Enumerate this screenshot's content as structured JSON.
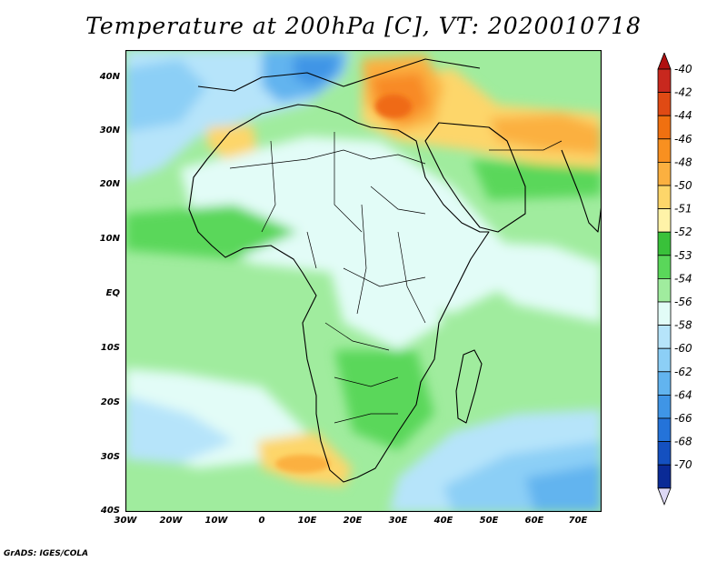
{
  "title": "Temperature at 200hPa [C], VT: 2020010718",
  "credit": "GrADS: IGES/COLA",
  "lat_labels": [
    "40N",
    "30N",
    "20N",
    "10N",
    "EQ",
    "10S",
    "20S",
    "30S",
    "40S"
  ],
  "lon_labels": [
    "30W",
    "20W",
    "10W",
    "0",
    "10E",
    "20E",
    "30E",
    "40E",
    "50E",
    "60E",
    "70E"
  ],
  "colorbar": {
    "levels": [
      "-40",
      "-42",
      "-44",
      "-46",
      "-48",
      "-50",
      "-51",
      "-52",
      "-53",
      "-54",
      "-56",
      "-58",
      "-60",
      "-62",
      "-64",
      "-66",
      "-68",
      "-70"
    ],
    "colors": [
      "#c8281e",
      "#e04a14",
      "#f07010",
      "#f89020",
      "#fbb040",
      "#fdd66a",
      "#fff3a8",
      "#39c13a",
      "#5ad75a",
      "#a0ec9e",
      "#e2fcf7",
      "#b6e4fa",
      "#8ccff6",
      "#62b4ef",
      "#3f95e6",
      "#2473d9",
      "#1450c0",
      "#0a2a96"
    ],
    "top_arrow_color": "#b01010",
    "bottom_arrow_color": "#ddd8f5"
  },
  "map_colors": {
    "base": "#a0ec9e",
    "pale": "#e2fcf7",
    "green": "#5ad75a",
    "darkgreen": "#39c13a",
    "blue1": "#b6e4fa",
    "blue2": "#8ccff6",
    "blue3": "#62b4ef",
    "yellow": "#fdd66a",
    "yellow2": "#fbb040",
    "orange": "#f88a28",
    "orange2": "#ef6a14"
  }
}
